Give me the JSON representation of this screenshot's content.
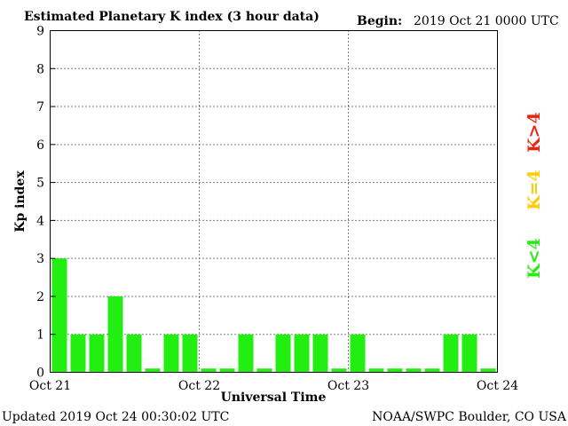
{
  "chart_data": {
    "type": "bar",
    "title": "Estimated Planetary K index (3 hour data)",
    "begin_label": "Begin:",
    "begin_value": "2019 Oct 21 0000 UTC",
    "xlabel": "Universal Time",
    "ylabel": "Kp index",
    "ylim": [
      0,
      9
    ],
    "yticks": [
      "0",
      "1",
      "2",
      "3",
      "4",
      "5",
      "6",
      "7",
      "8",
      "9"
    ],
    "xticks": [
      "Oct 21",
      "Oct 22",
      "Oct 23",
      "Oct 24"
    ],
    "grid": true,
    "bar_color": "#22ee11",
    "values": [
      3,
      1,
      1,
      2,
      1,
      0,
      1,
      1,
      0,
      0,
      1,
      0,
      1,
      1,
      1,
      0,
      1,
      0,
      0,
      0,
      0,
      1,
      1,
      0
    ]
  },
  "legend": {
    "above": {
      "text": "K>4",
      "color": "#ee2211"
    },
    "equal": {
      "text": "K=4",
      "color": "#ffcc00"
    },
    "below": {
      "text": "K<4",
      "color": "#22ee11"
    }
  },
  "footer": {
    "updated": "Updated 2019 Oct 24 00:30:02 UTC",
    "source": "NOAA/SWPC Boulder, CO USA"
  }
}
